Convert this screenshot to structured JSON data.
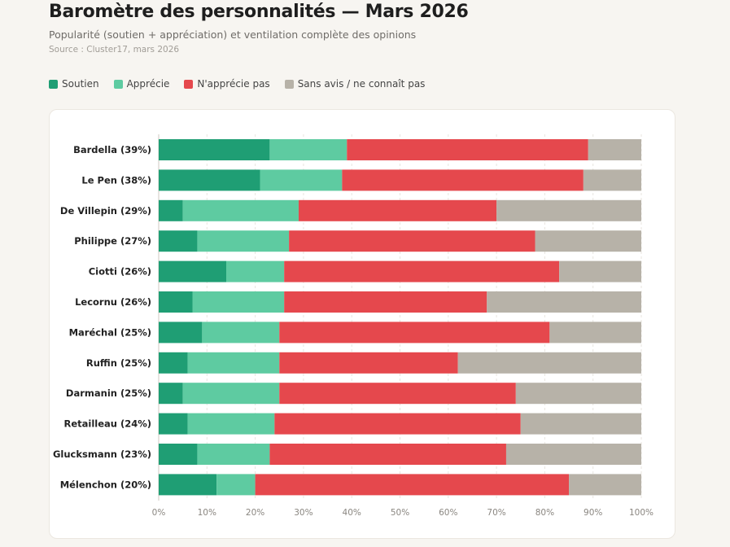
{
  "header": {
    "title": "Baromètre des personnalités — Mars 2026",
    "subtitle": "Popularité (soutien + appréciation) et ventilation complète des opinions",
    "source": "Source : Cluster17, mars 2026"
  },
  "legend": [
    {
      "label": "Soutien",
      "color": "#1f9e74"
    },
    {
      "label": "Apprécie",
      "color": "#5ecba1"
    },
    {
      "label": "N'apprécie pas",
      "color": "#e5484d"
    },
    {
      "label": "Sans avis / ne connaît pas",
      "color": "#b7b2a8"
    }
  ],
  "chart_data": {
    "type": "bar",
    "orientation": "horizontal",
    "stacked": true,
    "categories": [
      "Bardella (39%)",
      "Le Pen (38%)",
      "De Villepin (29%)",
      "Philippe (27%)",
      "Ciotti (26%)",
      "Lecornu (26%)",
      "Maréchal (25%)",
      "Ruffin (25%)",
      "Darmanin (25%)",
      "Retailleau (24%)",
      "Glucksmann (23%)",
      "Mélenchon (20%)"
    ],
    "series": [
      {
        "name": "Soutien",
        "color": "#1f9e74",
        "values": [
          23,
          21,
          5,
          8,
          14,
          7,
          9,
          6,
          5,
          6,
          8,
          12
        ]
      },
      {
        "name": "Apprécie",
        "color": "#5ecba1",
        "values": [
          16,
          17,
          24,
          19,
          12,
          19,
          16,
          19,
          20,
          18,
          15,
          8
        ]
      },
      {
        "name": "N'apprécie pas",
        "color": "#e5484d",
        "values": [
          50,
          50,
          41,
          51,
          57,
          42,
          56,
          37,
          49,
          51,
          49,
          65
        ]
      },
      {
        "name": "Sans avis / ne connaît pas",
        "color": "#b7b2a8",
        "values": [
          11,
          12,
          30,
          22,
          17,
          32,
          19,
          38,
          26,
          25,
          28,
          15
        ]
      }
    ],
    "xlim": [
      0,
      100
    ],
    "x_ticks": [
      "0%",
      "10%",
      "20%",
      "30%",
      "40%",
      "50%",
      "60%",
      "70%",
      "80%",
      "90%",
      "100%"
    ],
    "grid": true,
    "legend_position": "top-left"
  }
}
